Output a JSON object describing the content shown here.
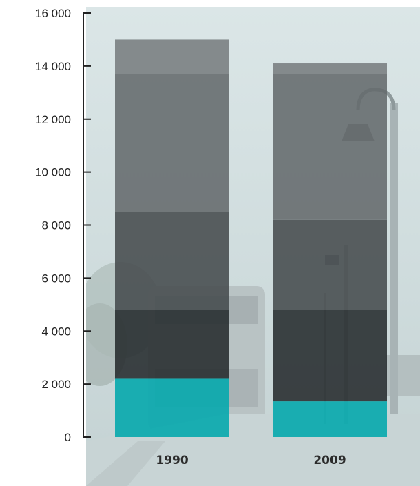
{
  "chart_data": {
    "type": "bar",
    "stacked": true,
    "categories": [
      "1990",
      "2009"
    ],
    "series": [
      {
        "values": [
          2200,
          1350
        ],
        "color": "#0aa9ae"
      },
      {
        "values": [
          2600,
          3450
        ],
        "color": "#262b2d"
      },
      {
        "values": [
          3700,
          3400
        ],
        "color": "#464b4d"
      },
      {
        "values": [
          5200,
          5500
        ],
        "color": "#646a6c"
      },
      {
        "values": [
          1300,
          400
        ],
        "color": "#787d7f"
      }
    ],
    "ylim": [
      0,
      16000
    ],
    "yticks": [
      "16 000",
      "14 000",
      "12 000",
      "10 000",
      "8 000",
      "6 000",
      "4 000",
      "2 000",
      "0"
    ],
    "ytick_values": [
      16000,
      14000,
      12000,
      10000,
      8000,
      6000,
      4000,
      2000,
      0
    ],
    "grid": false,
    "background": "faded photograph of a commuter train station platform with street lamps",
    "colors": {
      "background_tint": "#cfdedf",
      "axis": "#222222"
    }
  }
}
